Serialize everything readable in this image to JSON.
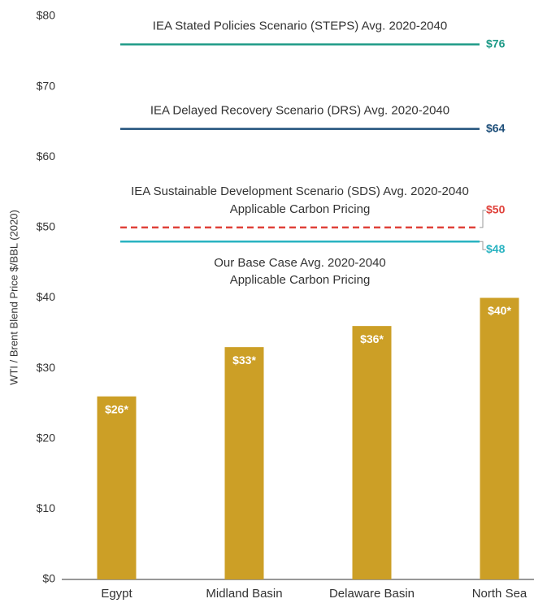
{
  "chart_data": {
    "type": "bar",
    "y_axis_label": "WTI / Brent Blend Price $/BBL (2020)",
    "categories": [
      "Egypt",
      "Midland Basin",
      "Delaware Basin",
      "North Sea"
    ],
    "values": [
      26,
      33,
      36,
      40
    ],
    "value_labels": [
      "$26*",
      "$33*",
      "$36*",
      "$40*"
    ],
    "color": "#cc9f26",
    "ylim": [
      0,
      80
    ],
    "yticks": [
      {
        "value": 0,
        "label": "$0"
      },
      {
        "value": 10,
        "label": "$10"
      },
      {
        "value": 20,
        "label": "$20"
      },
      {
        "value": 30,
        "label": "$30"
      },
      {
        "value": 40,
        "label": "$40"
      },
      {
        "value": 50,
        "label": "$50"
      },
      {
        "value": 60,
        "label": "$60"
      },
      {
        "value": 70,
        "label": "$70"
      },
      {
        "value": 80,
        "label": "$80"
      }
    ],
    "reference_lines": [
      {
        "name": [
          "IEA Stated Policies Scenario (STEPS) Avg. 2020-2040"
        ],
        "value": 76,
        "label": "$76",
        "color": "#1e9a87",
        "dashed": false,
        "text_position": "above"
      },
      {
        "name": [
          "IEA Delayed Recovery Scenario (DRS) Avg. 2020-2040"
        ],
        "value": 64,
        "label": "$64",
        "color": "#1d4e79",
        "dashed": false,
        "text_position": "above"
      },
      {
        "name": [
          "IEA Sustainable Development Scenario (SDS) Avg. 2020-2040",
          "Applicable Carbon Pricing"
        ],
        "value": 50,
        "label": "$50",
        "color": "#e0413a",
        "dashed": true,
        "text_position": "above"
      },
      {
        "name": [
          "Our Base Case Avg. 2020-2040",
          "Applicable Carbon Pricing"
        ],
        "value": 48,
        "label": "$48",
        "color": "#29b3c1",
        "dashed": false,
        "text_position": "below"
      }
    ]
  }
}
